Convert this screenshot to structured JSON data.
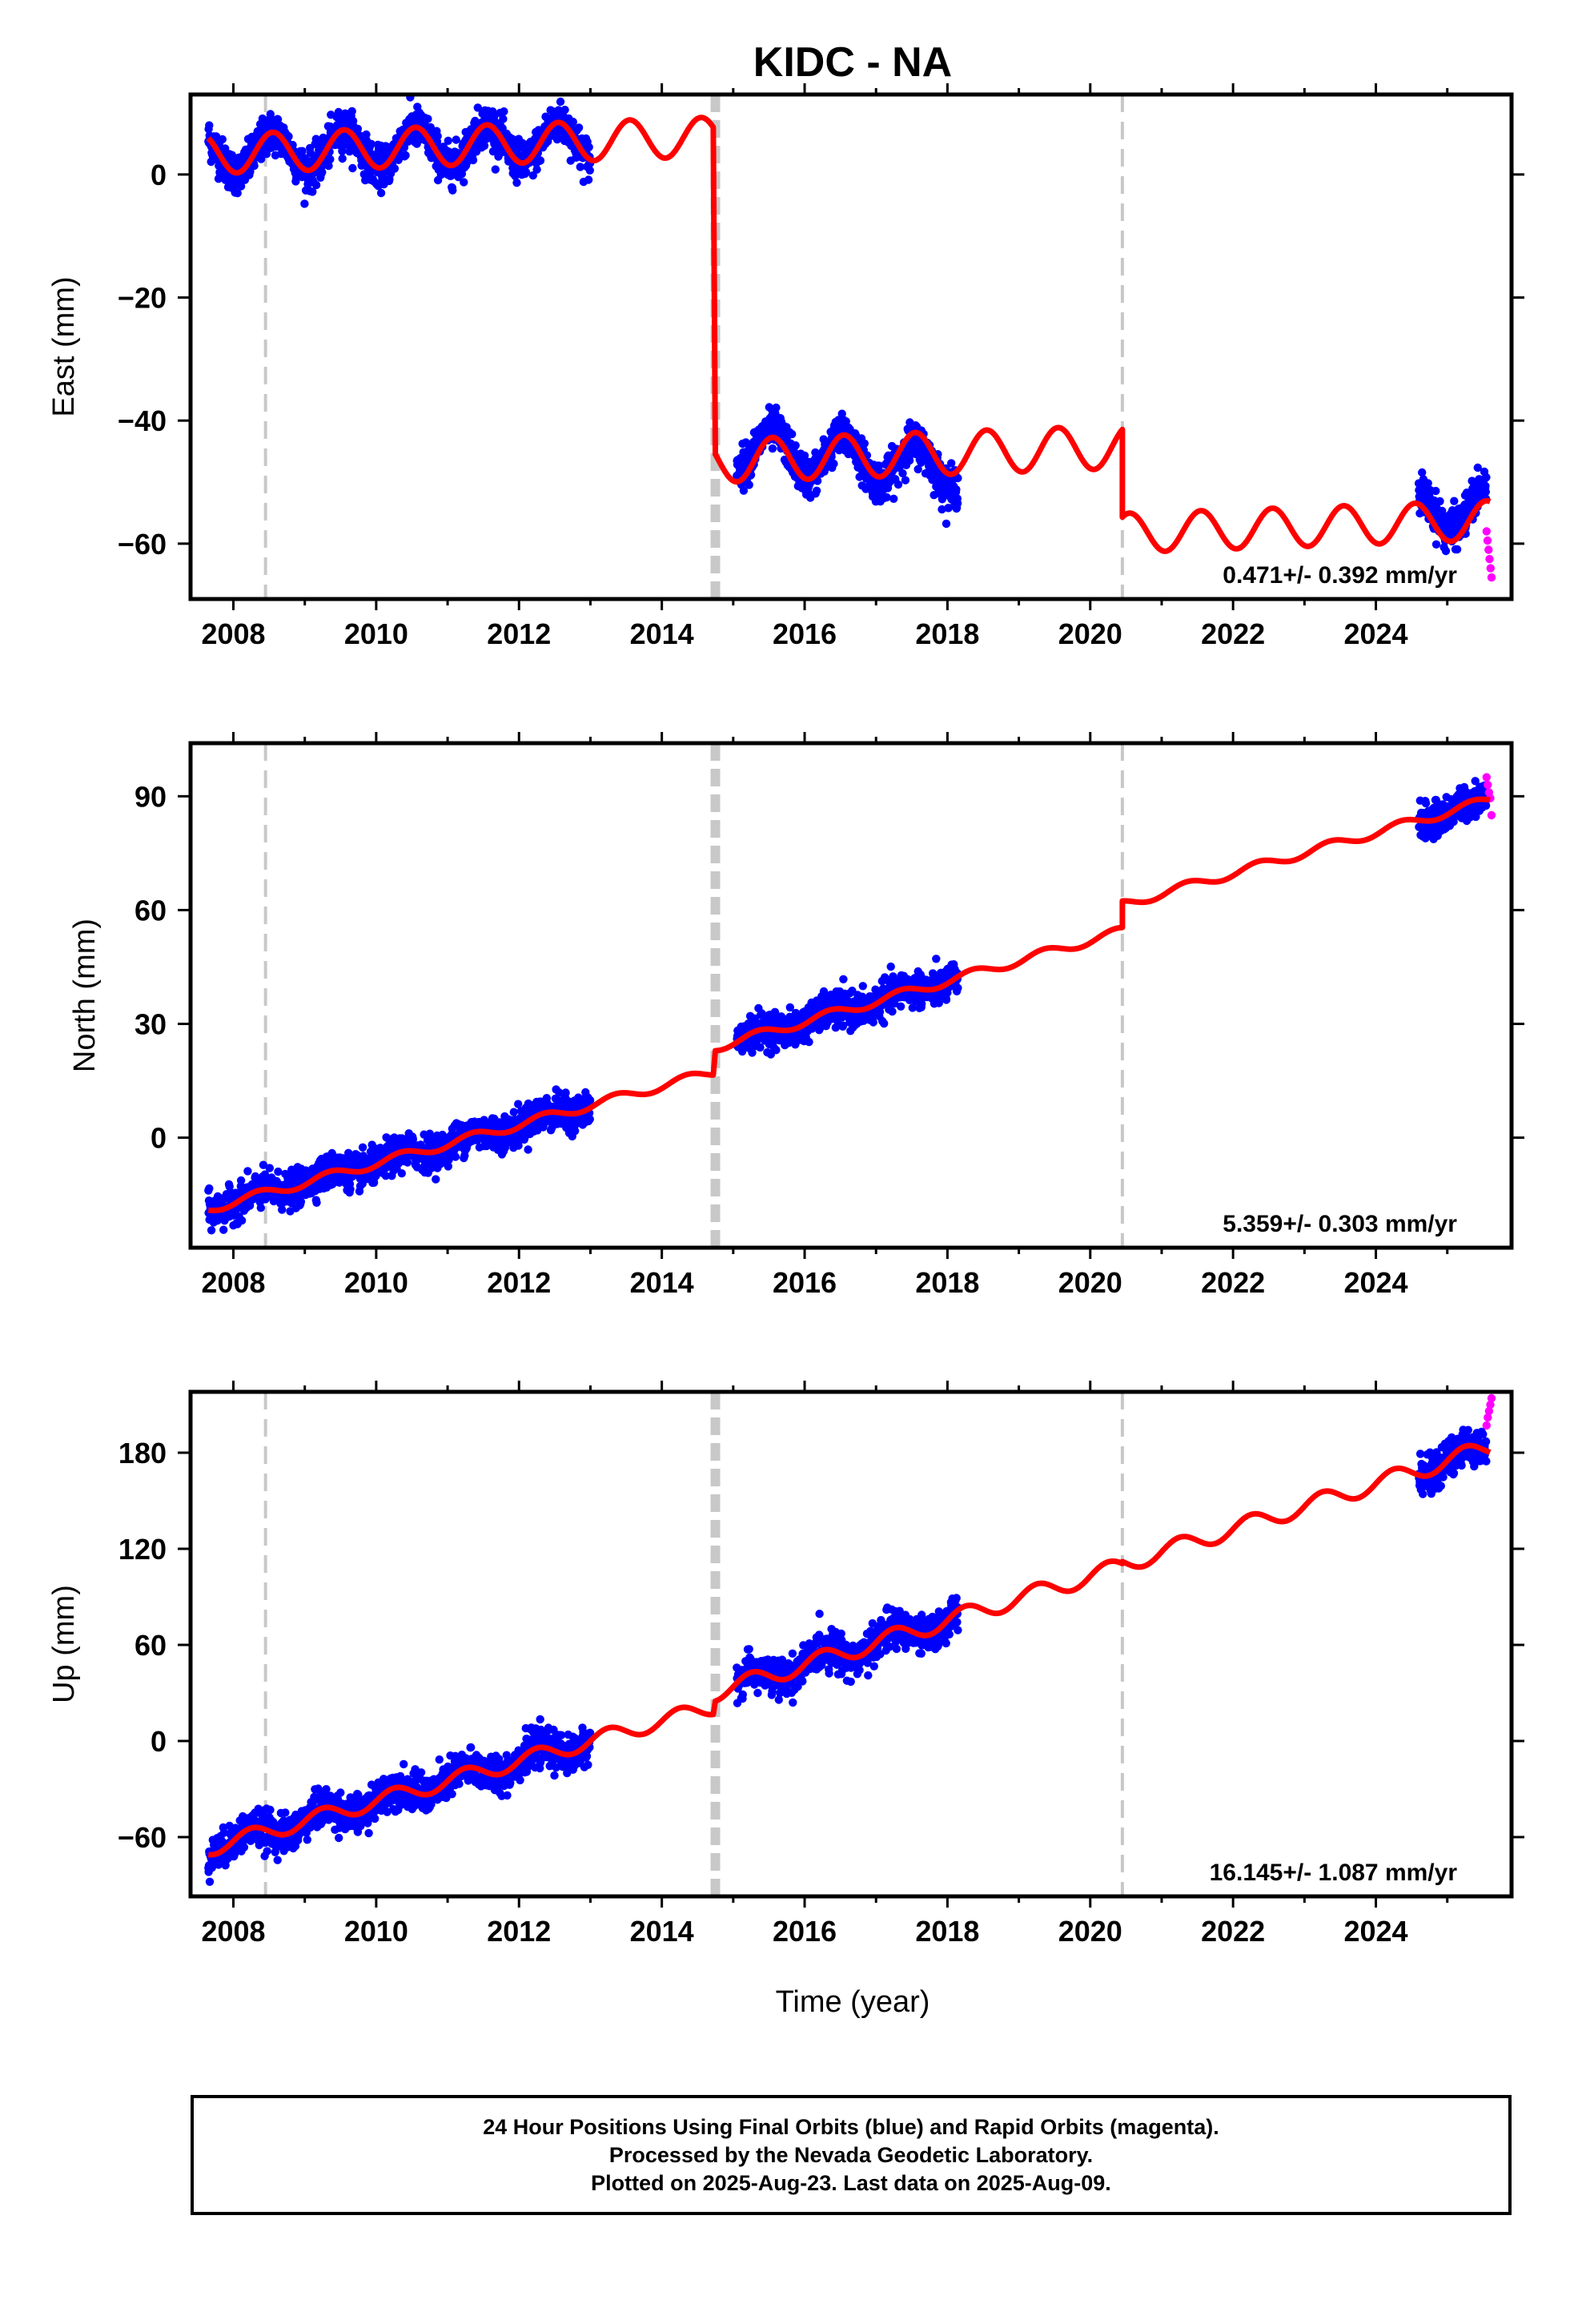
{
  "title": "KIDC - NA",
  "colors": {
    "final_points": "#0000ff",
    "rapid_points": "#ff00ff",
    "model_line": "#ff0000",
    "vertical_lines": "#c8c8c8"
  },
  "chart_data": [
    {
      "type": "scatter",
      "ylabel": "East (mm)",
      "xlim": [
        2007.4,
        2025.9
      ],
      "ylim": [
        -69,
        13
      ],
      "yticks": [
        0,
        -20,
        -40,
        -60
      ],
      "xticks": [
        2008,
        2010,
        2012,
        2014,
        2016,
        2018,
        2020,
        2022,
        2024
      ],
      "rate_label": "0.471+/- 0.392 mm/yr",
      "equipment_changes": [
        2008.45,
        2020.45
      ],
      "earthquake_offsets": [
        2014.75
      ],
      "model": {
        "segments": [
          {
            "x_start": 2007.65,
            "x_end": 2014.72,
            "offset": 3.2,
            "rate": 0.4,
            "amp": 3.2,
            "phase_year": 2008.3
          },
          {
            "x_start": 2014.75,
            "x_end": 2020.45,
            "offset": -49.5,
            "rate": 0.4,
            "amp": 3.5,
            "phase_year": 2008.3
          },
          {
            "x_start": 2020.45,
            "x_end": 2025.6,
            "offset": -63.5,
            "rate": 0.4,
            "amp": 3.2,
            "phase_year": 2008.3
          }
        ]
      },
      "final_data_ranges": [
        {
          "x_start": 2007.65,
          "x_end": 2013.0,
          "segment": 0,
          "extra_offset": 0,
          "noise": 1.6
        },
        {
          "x_start": 2015.05,
          "x_end": 2018.15,
          "segment": 1,
          "extra_offset": 2.0,
          "trend": -4.5,
          "noise": 1.6
        },
        {
          "x_start": 2024.6,
          "x_end": 2025.55,
          "segment": 2,
          "extra_offset": 2.0,
          "noise": 1.6
        }
      ],
      "rapid_data_range": {
        "x_start": 2025.55,
        "x_end": 2025.62,
        "y_values": [
          -58.0,
          -59.5,
          -61.0,
          -62.5,
          -64.0,
          -65.5
        ]
      }
    },
    {
      "type": "scatter",
      "ylabel": "North (mm)",
      "xlim": [
        2007.4,
        2025.9
      ],
      "ylim": [
        -29,
        104
      ],
      "yticks": [
        90,
        60,
        30,
        0
      ],
      "xticks": [
        2008,
        2010,
        2012,
        2014,
        2016,
        2018,
        2020,
        2022,
        2024
      ],
      "rate_label": "5.359+/- 0.303 mm/yr",
      "equipment_changes": [
        2008.45,
        2020.45
      ],
      "earthquake_offsets": [
        2014.75
      ],
      "model": {
        "segments": [
          {
            "x_start": 2007.65,
            "x_end": 2014.72,
            "offset": -20,
            "rate": 5.1,
            "amp": 1.2,
            "phase_year": 2008.1
          },
          {
            "x_start": 2014.75,
            "x_end": 2020.45,
            "offset": -15.5,
            "rate": 5.359,
            "amp": 1.2,
            "phase_year": 2008.1
          },
          {
            "x_start": 2020.45,
            "x_end": 2025.6,
            "offset": -8.5,
            "rate": 5.359,
            "amp": 1.2,
            "phase_year": 2008.1
          }
        ]
      },
      "final_data_ranges": [
        {
          "x_start": 2007.65,
          "x_end": 2013.0,
          "segment": 0,
          "extra_offset": 0,
          "noise": 2.2
        },
        {
          "x_start": 2015.05,
          "x_end": 2018.15,
          "segment": 1,
          "extra_offset": 0,
          "noise": 2.2
        },
        {
          "x_start": 2024.6,
          "x_end": 2025.55,
          "segment": 2,
          "extra_offset": 0,
          "noise": 2.2
        }
      ],
      "rapid_data_range": {
        "x_start": 2025.55,
        "x_end": 2025.62,
        "y_values": [
          95.0,
          93.0,
          91.0,
          89.5,
          85.0
        ]
      }
    },
    {
      "type": "scatter",
      "ylabel": "Up (mm)",
      "xlim": [
        2007.4,
        2025.9
      ],
      "ylim": [
        -97,
        218
      ],
      "yticks": [
        180,
        120,
        60,
        0,
        -60
      ],
      "xticks": [
        2008,
        2010,
        2012,
        2014,
        2016,
        2018,
        2020,
        2022,
        2024
      ],
      "xlabel": "Time (year)",
      "rate_label": "16.145+/- 1.087 mm/yr",
      "equipment_changes": [
        2008.45,
        2020.45
      ],
      "earthquake_offsets": [
        2014.75
      ],
      "model": {
        "segments": [
          {
            "x_start": 2007.65,
            "x_end": 2014.72,
            "offset": -70,
            "rate": 12.5,
            "amp": 5.0,
            "phase_year": 2008.0
          },
          {
            "x_start": 2014.75,
            "x_end": 2020.45,
            "offset": -71,
            "rate": 13.8,
            "amp": 5.5,
            "phase_year": 2008.0
          },
          {
            "x_start": 2020.45,
            "x_end": 2025.6,
            "offset": -75,
            "rate": 14.2,
            "amp": 5.5,
            "phase_year": 2008.0
          }
        ]
      },
      "final_data_ranges": [
        {
          "x_start": 2007.65,
          "x_end": 2013.0,
          "segment": 0,
          "extra_offset": 0,
          "noise": 5.5
        },
        {
          "x_start": 2015.05,
          "x_end": 2018.15,
          "segment": 1,
          "extra_offset": 0,
          "noise": 5.5
        },
        {
          "x_start": 2024.6,
          "x_end": 2025.55,
          "segment": 2,
          "extra_offset": 0,
          "noise": 5.5
        }
      ],
      "rapid_data_range": {
        "x_start": 2025.55,
        "x_end": 2025.62,
        "y_values": [
          197,
          202,
          206,
          210,
          214
        ]
      }
    }
  ],
  "footer": {
    "line1": "24 Hour Positions Using Final Orbits (blue) and Rapid Orbits (magenta).",
    "line2": "Processed by the Nevada Geodetic Laboratory.",
    "line3": "Plotted on 2025-Aug-23. Last data on 2025-Aug-09."
  }
}
